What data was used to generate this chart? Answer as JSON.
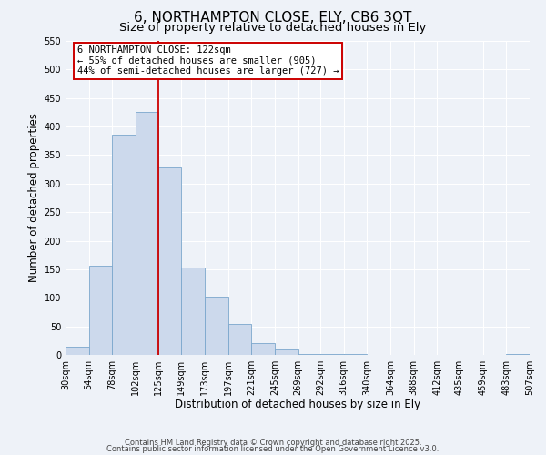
{
  "title": "6, NORTHAMPTON CLOSE, ELY, CB6 3QT",
  "subtitle": "Size of property relative to detached houses in Ely",
  "xlabel": "Distribution of detached houses by size in Ely",
  "ylabel": "Number of detached properties",
  "bin_edges": [
    30,
    54,
    78,
    102,
    125,
    149,
    173,
    197,
    221,
    245,
    269,
    292,
    316,
    340,
    364,
    388,
    412,
    435,
    459,
    483,
    507
  ],
  "bin_heights": [
    15,
    157,
    385,
    425,
    328,
    153,
    102,
    55,
    21,
    10,
    2,
    1,
    1,
    0,
    0,
    0,
    0,
    0,
    0,
    1
  ],
  "bar_color": "#ccd9ec",
  "bar_edge_color": "#7aa6cc",
  "vline_x": 125,
  "vline_color": "#cc0000",
  "annotation_line1": "6 NORTHAMPTON CLOSE: 122sqm",
  "annotation_line2": "← 55% of detached houses are smaller (905)",
  "annotation_line3": "44% of semi-detached houses are larger (727) →",
  "ylim": [
    0,
    550
  ],
  "yticks": [
    0,
    50,
    100,
    150,
    200,
    250,
    300,
    350,
    400,
    450,
    500,
    550
  ],
  "xtick_labels": [
    "30sqm",
    "54sqm",
    "78sqm",
    "102sqm",
    "125sqm",
    "149sqm",
    "173sqm",
    "197sqm",
    "221sqm",
    "245sqm",
    "269sqm",
    "292sqm",
    "316sqm",
    "340sqm",
    "364sqm",
    "388sqm",
    "412sqm",
    "435sqm",
    "459sqm",
    "483sqm",
    "507sqm"
  ],
  "footer1": "Contains HM Land Registry data © Crown copyright and database right 2025.",
  "footer2": "Contains public sector information licensed under the Open Government Licence v3.0.",
  "background_color": "#eef2f8",
  "grid_color": "#ffffff",
  "title_fontsize": 11,
  "subtitle_fontsize": 9.5,
  "axis_label_fontsize": 8.5,
  "tick_fontsize": 7,
  "annotation_fontsize": 7.5,
  "footer_fontsize": 6
}
